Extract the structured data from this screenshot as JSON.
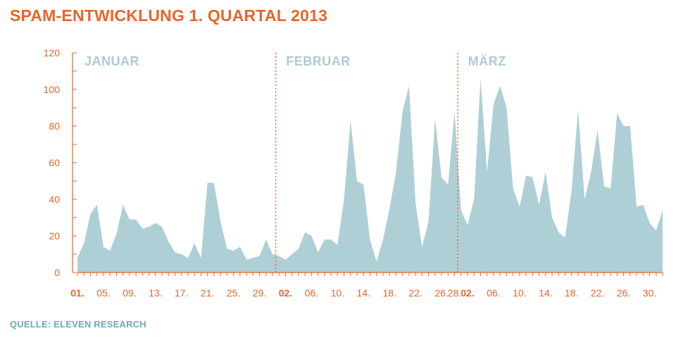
{
  "title": "SPAM-ENTWICKLUNG 1. QUARTAL 2013",
  "source": "QUELLE: ELEVEN RESEARCH",
  "colors": {
    "accent": "#e8652a",
    "area": "#afcfd6",
    "month_label": "#aecbd3",
    "source": "#6fa8b8"
  },
  "chart_data": {
    "type": "area",
    "title": "SPAM-ENTWICKLUNG 1. QUARTAL 2013",
    "xlabel": "",
    "ylabel": "",
    "ylim": [
      0,
      120
    ],
    "yticks": [
      0,
      20,
      40,
      60,
      80,
      100,
      120
    ],
    "grid": false,
    "legend": "none",
    "months": [
      {
        "label": "JANUAR",
        "start_day": 1
      },
      {
        "label": "FEBRUAR",
        "start_day": 32
      },
      {
        "label": "MÄRZ",
        "start_day": 60
      }
    ],
    "xtick_labels": [
      {
        "day": 1,
        "label": "01.",
        "bold": true
      },
      {
        "day": 5,
        "label": "05.",
        "bold": false
      },
      {
        "day": 9,
        "label": "09.",
        "bold": false
      },
      {
        "day": 13,
        "label": "13.",
        "bold": false
      },
      {
        "day": 17,
        "label": "17.",
        "bold": false
      },
      {
        "day": 21,
        "label": "21.",
        "bold": false
      },
      {
        "day": 25,
        "label": "25.",
        "bold": false
      },
      {
        "day": 29,
        "label": "29.",
        "bold": false
      },
      {
        "day": 33,
        "label": "02.",
        "bold": true
      },
      {
        "day": 37,
        "label": "06.",
        "bold": false
      },
      {
        "day": 41,
        "label": "10.",
        "bold": false
      },
      {
        "day": 45,
        "label": "14.",
        "bold": false
      },
      {
        "day": 49,
        "label": "18.",
        "bold": false
      },
      {
        "day": 53,
        "label": "22.",
        "bold": false
      },
      {
        "day": 57,
        "label": "26.",
        "bold": false
      },
      {
        "day": 59,
        "label": "28.",
        "bold": false
      },
      {
        "day": 61,
        "label": "02.",
        "bold": true
      },
      {
        "day": 65,
        "label": "06.",
        "bold": false
      },
      {
        "day": 69,
        "label": "10.",
        "bold": false
      },
      {
        "day": 73,
        "label": "14.",
        "bold": false
      },
      {
        "day": 77,
        "label": "18.",
        "bold": false
      },
      {
        "day": 81,
        "label": "22.",
        "bold": false
      },
      {
        "day": 85,
        "label": "26.",
        "bold": false
      },
      {
        "day": 89,
        "label": "30.",
        "bold": false
      }
    ],
    "series": [
      {
        "values": [
          8,
          16,
          32,
          37,
          14,
          12,
          21,
          37,
          29,
          29,
          24,
          25,
          27,
          25,
          17,
          11,
          10,
          8,
          16,
          8,
          49,
          49,
          28,
          13,
          12,
          14,
          7,
          8,
          9,
          18,
          10,
          9,
          7,
          10,
          13,
          22,
          20,
          11,
          18,
          18,
          15,
          40,
          83,
          50,
          48,
          18,
          6,
          18,
          35,
          55,
          88,
          102,
          38,
          14,
          28,
          84,
          52,
          48,
          88,
          34,
          26,
          40,
          106,
          55,
          92,
          102,
          90,
          46,
          36,
          53,
          52,
          37,
          55,
          30,
          22,
          19,
          45,
          89,
          40,
          55,
          78,
          47,
          46,
          87,
          80,
          80,
          36,
          37,
          27,
          23,
          34
        ]
      }
    ]
  }
}
